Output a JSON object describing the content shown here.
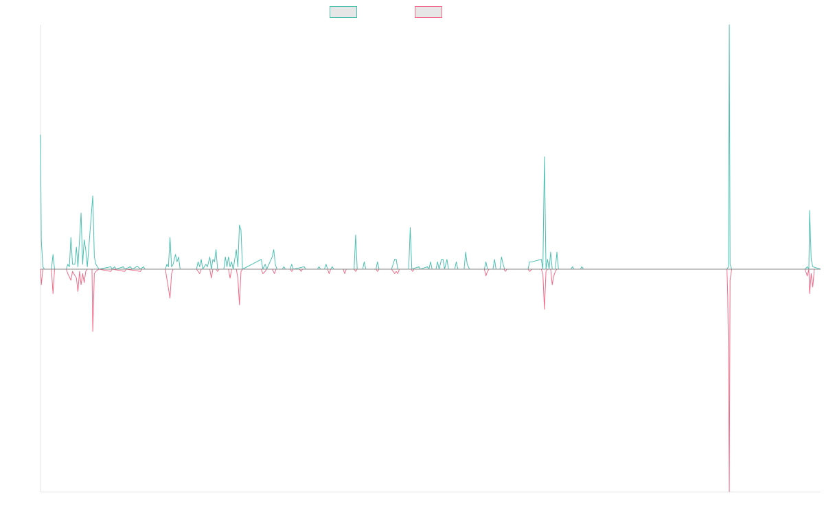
{
  "chart_data": {
    "type": "line",
    "title": "",
    "xlabel": "",
    "ylabel": "",
    "x_range": [
      0,
      1000
    ],
    "ylim": [
      -1,
      1
    ],
    "grid": false,
    "legend_position": "top-center",
    "series": [
      {
        "color": "#4bc0b2",
        "points": [
          [
            0,
            0.55
          ],
          [
            1,
            0.12
          ],
          [
            3,
            0.01
          ],
          [
            5,
            0
          ],
          [
            14,
            0
          ],
          [
            16,
            0.06
          ],
          [
            18,
            0
          ],
          [
            33,
            0
          ],
          [
            35,
            0.02
          ],
          [
            37,
            0.01
          ],
          [
            39,
            0.13
          ],
          [
            41,
            0.02
          ],
          [
            44,
            0.02
          ],
          [
            46,
            0.09
          ],
          [
            48,
            0.01
          ],
          [
            52,
            0.23
          ],
          [
            54,
            0.02
          ],
          [
            56,
            0.12
          ],
          [
            58,
            0.08
          ],
          [
            60,
            0.01
          ],
          [
            67,
            0.3
          ],
          [
            69,
            0.05
          ],
          [
            71,
            0.02
          ],
          [
            75,
            0
          ],
          [
            90,
            0.01
          ],
          [
            92,
            0
          ],
          [
            95,
            0.01
          ],
          [
            97,
            0
          ],
          [
            106,
            0.01
          ],
          [
            108,
            0
          ],
          [
            115,
            0.01
          ],
          [
            118,
            0
          ],
          [
            123,
            0.01
          ],
          [
            125,
            0.01
          ],
          [
            128,
            0
          ],
          [
            132,
            0.01
          ],
          [
            134,
            0
          ],
          [
            160,
            0
          ],
          [
            162,
            0.02
          ],
          [
            164,
            0.01
          ],
          [
            166,
            0.13
          ],
          [
            168,
            0.01
          ],
          [
            170,
            0.02
          ],
          [
            173,
            0.06
          ],
          [
            175,
            0.03
          ],
          [
            177,
            0.05
          ],
          [
            179,
            0
          ],
          [
            200,
            0
          ],
          [
            202,
            0.03
          ],
          [
            204,
            0.01
          ],
          [
            206,
            0.04
          ],
          [
            208,
            0
          ],
          [
            212,
            0.02
          ],
          [
            214,
            0.01
          ],
          [
            217,
            0.05
          ],
          [
            219,
            0
          ],
          [
            221,
            0.04
          ],
          [
            223,
            0.03
          ],
          [
            225,
            0.08
          ],
          [
            227,
            0
          ],
          [
            235,
            0
          ],
          [
            237,
            0.05
          ],
          [
            239,
            0.01
          ],
          [
            241,
            0.05
          ],
          [
            243,
            0.01
          ],
          [
            245,
            0.03
          ],
          [
            247,
            0
          ],
          [
            251,
            0.08
          ],
          [
            253,
            0.01
          ],
          [
            255,
            0.18
          ],
          [
            257,
            0.16
          ],
          [
            259,
            0
          ],
          [
            283,
            0.04
          ],
          [
            285,
            0
          ],
          [
            288,
            0.02
          ],
          [
            290,
            0
          ],
          [
            297,
            0.05
          ],
          [
            299,
            0.08
          ],
          [
            301,
            0.02
          ],
          [
            303,
            0
          ],
          [
            310,
            0
          ],
          [
            312,
            0.01
          ],
          [
            314,
            0
          ],
          [
            320,
            0
          ],
          [
            322,
            0.02
          ],
          [
            324,
            0
          ],
          [
            338,
            0.01
          ],
          [
            340,
            0
          ],
          [
            355,
            0
          ],
          [
            357,
            0.01
          ],
          [
            359,
            0
          ],
          [
            364,
            0
          ],
          [
            366,
            0.02
          ],
          [
            368,
            0
          ],
          [
            372,
            0
          ],
          [
            374,
            0.01
          ],
          [
            376,
            0
          ],
          [
            402,
            0
          ],
          [
            404,
            0.14
          ],
          [
            406,
            0
          ],
          [
            413,
            0
          ],
          [
            415,
            0.03
          ],
          [
            417,
            0
          ],
          [
            430,
            0
          ],
          [
            432,
            0.03
          ],
          [
            434,
            0
          ],
          [
            450,
            0
          ],
          [
            452,
            0.02
          ],
          [
            454,
            0.04
          ],
          [
            456,
            0.04
          ],
          [
            458,
            0
          ],
          [
            472,
            0
          ],
          [
            474,
            0.17
          ],
          [
            476,
            0
          ],
          [
            485,
            0.01
          ],
          [
            487,
            0
          ],
          [
            496,
            0.01
          ],
          [
            498,
            0
          ],
          [
            500,
            0.03
          ],
          [
            502,
            0
          ],
          [
            507,
            0
          ],
          [
            509,
            0.03
          ],
          [
            511,
            0
          ],
          [
            514,
            0.04
          ],
          [
            516,
            0.04
          ],
          [
            518,
            0
          ],
          [
            521,
            0.04
          ],
          [
            523,
            0
          ],
          [
            531,
            0
          ],
          [
            533,
            0.03
          ],
          [
            535,
            0
          ],
          [
            543,
            0
          ],
          [
            545,
            0.07
          ],
          [
            547,
            0.02
          ],
          [
            550,
            0
          ],
          [
            560,
            0
          ],
          [
            569,
            0
          ],
          [
            571,
            0.03
          ],
          [
            573,
            0
          ],
          [
            580,
            0
          ],
          [
            582,
            0.04
          ],
          [
            584,
            0
          ],
          [
            589,
            0
          ],
          [
            591,
            0.05
          ],
          [
            593,
            0.02
          ],
          [
            595,
            0
          ],
          [
            625,
            0
          ],
          [
            627,
            0.03
          ],
          [
            630,
            0.03
          ],
          [
            642,
            0.04
          ],
          [
            644,
            0
          ],
          [
            646,
            0.46
          ],
          [
            648,
            0
          ],
          [
            650,
            0.04
          ],
          [
            652,
            0
          ],
          [
            654,
            0.07
          ],
          [
            656,
            0
          ],
          [
            660,
            0
          ],
          [
            662,
            0.07
          ],
          [
            664,
            0
          ],
          [
            680,
            0
          ],
          [
            682,
            0.01
          ],
          [
            684,
            0
          ],
          [
            692,
            0
          ],
          [
            694,
            0.01
          ],
          [
            696,
            0
          ],
          [
            880,
            0
          ],
          [
            882,
            0.01
          ],
          [
            883,
            1
          ],
          [
            884,
            0.02
          ],
          [
            886,
            0
          ],
          [
            980,
            0
          ],
          [
            983,
            0.01
          ],
          [
            985,
            0
          ],
          [
            986,
            0.24
          ],
          [
            988,
            0.04
          ],
          [
            990,
            0.01
          ],
          [
            1000,
            0
          ]
        ]
      },
      {
        "color": "#f06a88",
        "points": [
          [
            0,
            0
          ],
          [
            1,
            -0.07
          ],
          [
            3,
            0
          ],
          [
            14,
            0
          ],
          [
            16,
            -0.11
          ],
          [
            18,
            0
          ],
          [
            33,
            0
          ],
          [
            35,
            -0.02
          ],
          [
            39,
            -0.05
          ],
          [
            41,
            -0.01
          ],
          [
            46,
            -0.04
          ],
          [
            48,
            -0.1
          ],
          [
            50,
            -0.01
          ],
          [
            52,
            -0.07
          ],
          [
            54,
            -0.02
          ],
          [
            56,
            -0.06
          ],
          [
            58,
            -0.01
          ],
          [
            60,
            0
          ],
          [
            66,
            0
          ],
          [
            67,
            -0.28
          ],
          [
            69,
            -0.02
          ],
          [
            71,
            -0.01
          ],
          [
            75,
            0
          ],
          [
            90,
            -0.01
          ],
          [
            92,
            0
          ],
          [
            108,
            -0.01
          ],
          [
            110,
            0
          ],
          [
            128,
            -0.01
          ],
          [
            130,
            0
          ],
          [
            160,
            0
          ],
          [
            166,
            -0.13
          ],
          [
            168,
            -0.02
          ],
          [
            170,
            0
          ],
          [
            200,
            0
          ],
          [
            202,
            -0.01
          ],
          [
            204,
            -0.02
          ],
          [
            206,
            0
          ],
          [
            217,
            0
          ],
          [
            219,
            -0.04
          ],
          [
            221,
            0
          ],
          [
            225,
            0
          ],
          [
            227,
            -0.01
          ],
          [
            229,
            0
          ],
          [
            241,
            0
          ],
          [
            243,
            -0.04
          ],
          [
            245,
            0
          ],
          [
            251,
            0
          ],
          [
            253,
            -0.04
          ],
          [
            255,
            -0.16
          ],
          [
            257,
            -0.01
          ],
          [
            259,
            0
          ],
          [
            283,
            0
          ],
          [
            285,
            -0.02
          ],
          [
            288,
            -0.01
          ],
          [
            290,
            0
          ],
          [
            297,
            0
          ],
          [
            300,
            -0.02
          ],
          [
            302,
            0
          ],
          [
            320,
            0
          ],
          [
            322,
            -0.01
          ],
          [
            324,
            0
          ],
          [
            332,
            0
          ],
          [
            334,
            -0.01
          ],
          [
            336,
            0
          ],
          [
            368,
            0
          ],
          [
            370,
            -0.02
          ],
          [
            372,
            0
          ],
          [
            388,
            0
          ],
          [
            390,
            -0.02
          ],
          [
            392,
            0
          ],
          [
            402,
            0
          ],
          [
            404,
            -0.01
          ],
          [
            406,
            0
          ],
          [
            430,
            0
          ],
          [
            432,
            -0.01
          ],
          [
            434,
            0
          ],
          [
            450,
            0
          ],
          [
            454,
            -0.02
          ],
          [
            456,
            -0.01
          ],
          [
            458,
            -0.02
          ],
          [
            460,
            0
          ],
          [
            475,
            0
          ],
          [
            477,
            -0.01
          ],
          [
            479,
            0
          ],
          [
            560,
            0
          ],
          [
            569,
            0
          ],
          [
            571,
            -0.03
          ],
          [
            573,
            -0.01
          ],
          [
            575,
            0
          ],
          [
            594,
            0
          ],
          [
            596,
            -0.01
          ],
          [
            598,
            0
          ],
          [
            625,
            0
          ],
          [
            627,
            -0.01
          ],
          [
            630,
            0
          ],
          [
            642,
            0
          ],
          [
            644,
            -0.02
          ],
          [
            646,
            -0.18
          ],
          [
            648,
            -0.01
          ],
          [
            650,
            0
          ],
          [
            654,
            0
          ],
          [
            656,
            -0.07
          ],
          [
            658,
            -0.03
          ],
          [
            660,
            -0.01
          ],
          [
            662,
            0
          ],
          [
            680,
            0
          ],
          [
            880,
            0
          ],
          [
            881,
            -0.12
          ],
          [
            882,
            -0.4
          ],
          [
            883,
            -1
          ],
          [
            884,
            -0.05
          ],
          [
            886,
            0
          ],
          [
            980,
            0
          ],
          [
            983,
            -0.03
          ],
          [
            985,
            0
          ],
          [
            986,
            -0.11
          ],
          [
            988,
            -0.02
          ],
          [
            990,
            -0.08
          ],
          [
            992,
            0
          ],
          [
            1000,
            0
          ]
        ]
      }
    ]
  }
}
